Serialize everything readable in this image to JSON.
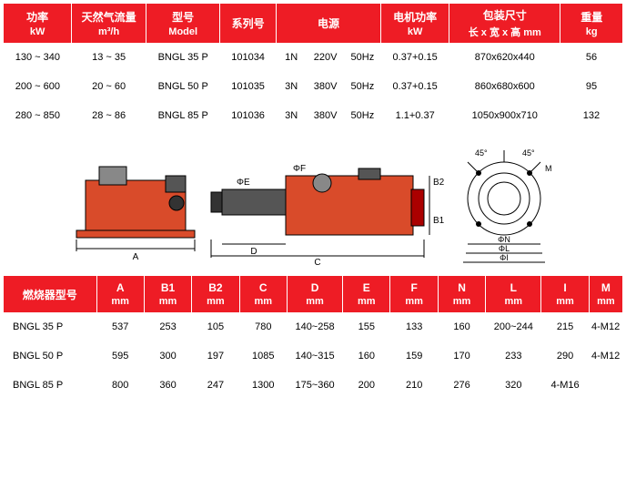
{
  "table1": {
    "headers": [
      {
        "top": "功率",
        "bottom": "kW"
      },
      {
        "top": "天然气流量",
        "bottom": "m³/h"
      },
      {
        "top": "型号",
        "bottom": "Model"
      },
      {
        "top": "系列号",
        "bottom": ""
      },
      {
        "top": "电源",
        "bottom": ""
      },
      {
        "top": "电机功率",
        "bottom": "kW"
      },
      {
        "top": "包装尺寸",
        "bottom": "长 x 宽 x 高 mm"
      },
      {
        "top": "重量",
        "bottom": "kg"
      }
    ],
    "rows": [
      {
        "power": "130 ~ 340",
        "gas": "13 ~ 35",
        "model": "BNGL 35 P",
        "series": "101034",
        "p1": "1N",
        "p2": "220V",
        "p3": "50Hz",
        "motor": "0.37+0.15",
        "pack": "870x620x440",
        "wt": "56"
      },
      {
        "power": "200 ~ 600",
        "gas": "20 ~ 60",
        "model": "BNGL 50 P",
        "series": "101035",
        "p1": "3N",
        "p2": "380V",
        "p3": "50Hz",
        "motor": "0.37+0.15",
        "pack": "860x680x600",
        "wt": "95"
      },
      {
        "power": "280 ~ 850",
        "gas": "28 ~ 86",
        "model": "BNGL 85 P",
        "series": "101036",
        "p1": "3N",
        "p2": "380V",
        "p3": "50Hz",
        "motor": "1.1+0.37",
        "pack": "1050x900x710",
        "wt": "132"
      }
    ]
  },
  "diagram": {
    "labels": {
      "A": "A",
      "B1": "B1",
      "B2": "B2",
      "C": "C",
      "D": "D",
      "E": "ΦE",
      "F": "ΦF",
      "N": "ΦN",
      "L": "ΦL",
      "I": "ΦI",
      "M": "M",
      "ang": "45°"
    },
    "colors": {
      "burner": "#d94b2a",
      "dark": "#333333",
      "line": "#000000"
    }
  },
  "table2": {
    "rowhdr": "燃烧器型号",
    "headers": [
      {
        "top": "A",
        "bottom": "mm"
      },
      {
        "top": "B1",
        "bottom": "mm"
      },
      {
        "top": "B2",
        "bottom": "mm"
      },
      {
        "top": "C",
        "bottom": "mm"
      },
      {
        "top": "D",
        "bottom": "mm"
      },
      {
        "top": "E",
        "bottom": "mm"
      },
      {
        "top": "F",
        "bottom": "mm"
      },
      {
        "top": "N",
        "bottom": "mm"
      },
      {
        "top": "L",
        "bottom": "mm"
      },
      {
        "top": "I",
        "bottom": "mm"
      },
      {
        "top": "M",
        "bottom": "mm"
      }
    ],
    "rows": [
      {
        "model": "BNGL 35 P",
        "A": "537",
        "B1": "253",
        "B2": "105",
        "C": "780",
        "D": "140~258",
        "E": "155",
        "F": "133",
        "N": "160",
        "L": "200~244",
        "I": "215",
        "M": "4-M12"
      },
      {
        "model": "BNGL 50 P",
        "A": "595",
        "B1": "300",
        "B2": "197",
        "C": "1085",
        "D": "140~315",
        "E": "160",
        "F": "159",
        "N": "170",
        "L": "233",
        "I": "290",
        "M": "4-M12"
      },
      {
        "model": "BNGL 85 P",
        "A": "800",
        "B1": "360",
        "B2": "247",
        "C": "1300",
        "D": "175~360",
        "E": "200",
        "F": "210",
        "N": "276",
        "L": "320",
        "I": "4-M16",
        "M": ""
      }
    ]
  }
}
